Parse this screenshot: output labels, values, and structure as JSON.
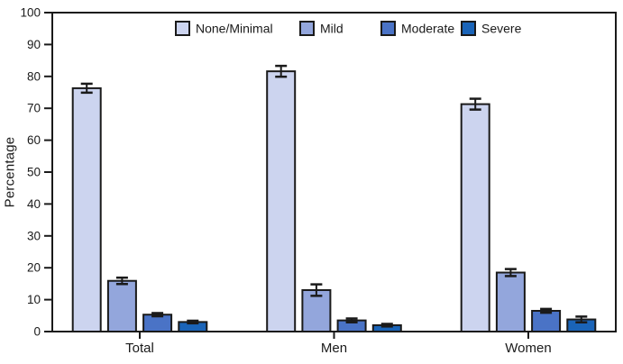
{
  "chart_data": {
    "type": "bar",
    "title": "",
    "xlabel": "",
    "ylabel": "Percentage",
    "ylim": [
      0,
      100
    ],
    "ytick_step": 10,
    "grid": false,
    "legend_position": "top-center-inside",
    "categories": [
      "Total",
      "Men",
      "Women"
    ],
    "series": [
      {
        "name": "None/Minimal",
        "color": "#ccd4ef",
        "values": [
          76.3,
          81.6,
          71.3
        ],
        "errors": [
          1.4,
          1.7,
          1.7
        ]
      },
      {
        "name": "Mild",
        "color": "#93a6dc",
        "values": [
          15.9,
          13.0,
          18.5
        ],
        "errors": [
          1.0,
          1.8,
          1.1
        ]
      },
      {
        "name": "Moderate",
        "color": "#4a73c6",
        "values": [
          5.3,
          3.5,
          6.5
        ],
        "errors": [
          0.5,
          0.6,
          0.6
        ]
      },
      {
        "name": "Severe",
        "color": "#1a64b8",
        "values": [
          3.0,
          2.0,
          3.8
        ],
        "errors": [
          0.4,
          0.4,
          0.9
        ]
      }
    ],
    "axis_color": "#1a1a1a",
    "text_color": "#1a1a1a"
  }
}
